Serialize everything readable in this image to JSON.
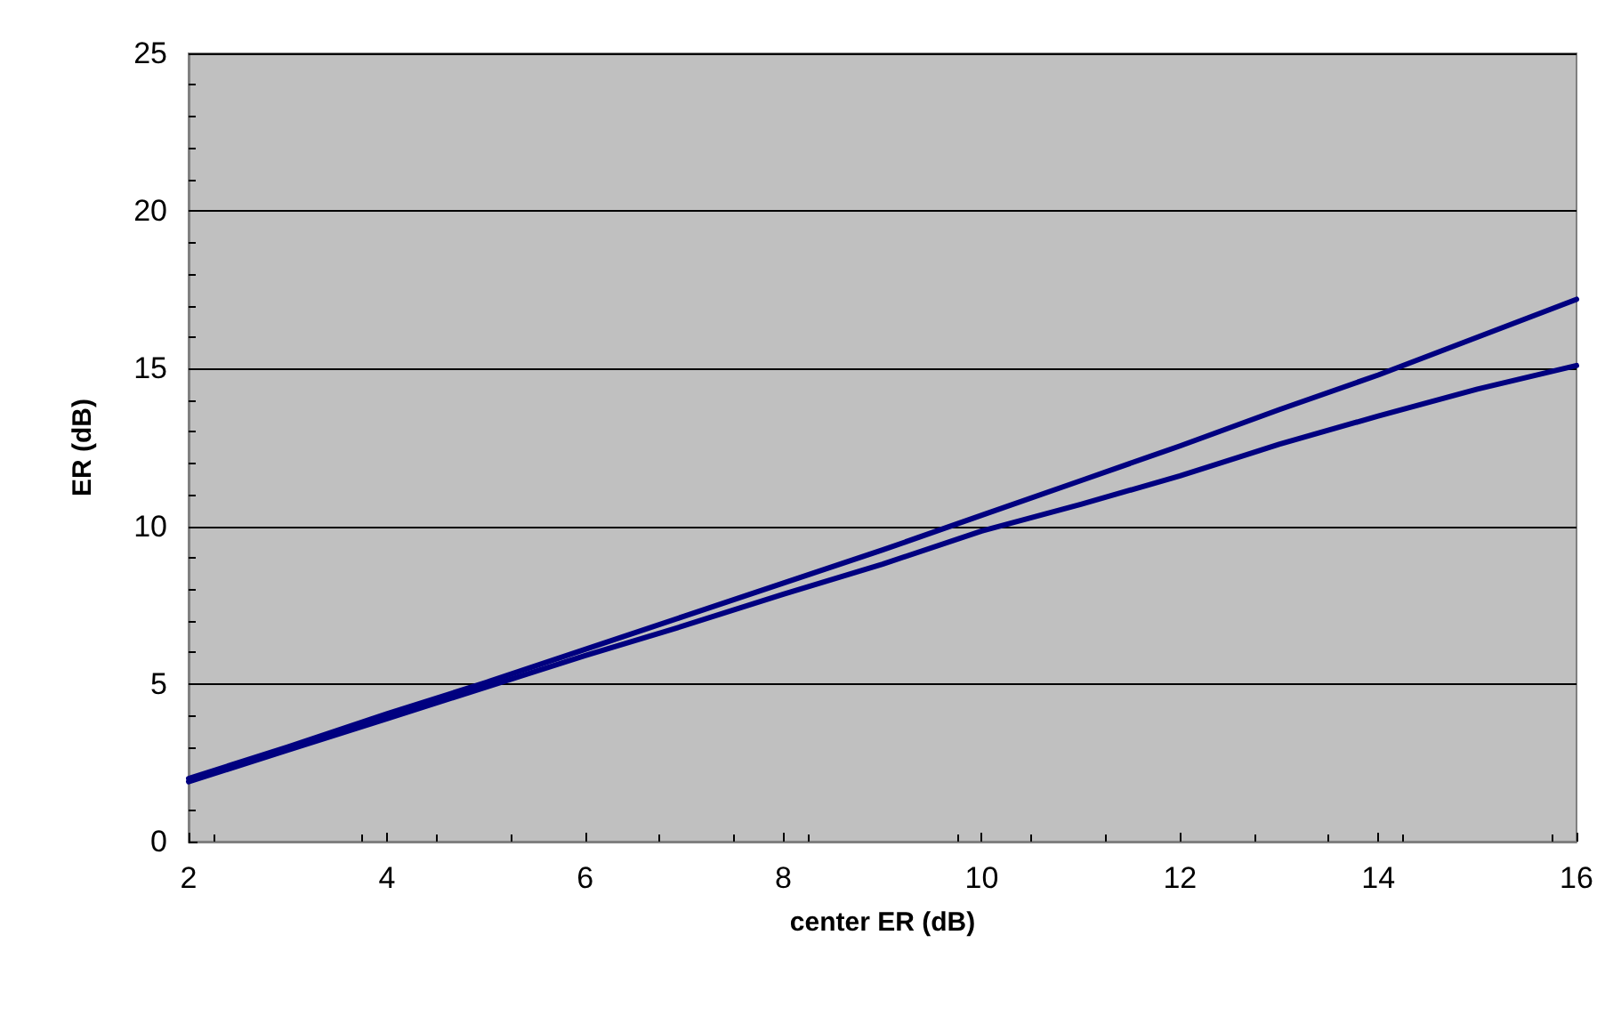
{
  "chart_data": {
    "type": "line",
    "xlabel": "center ER (dB)",
    "ylabel": "ER (dB)",
    "x": [
      2,
      3,
      4,
      5,
      6,
      7,
      8,
      9,
      10,
      11,
      12,
      13,
      14,
      15,
      16
    ],
    "series": [
      {
        "color": "#000080",
        "values": [
          2.0,
          3.0,
          4.05,
          5.05,
          6.1,
          7.15,
          8.2,
          9.25,
          10.35,
          11.45,
          12.55,
          13.7,
          14.8,
          16.0,
          17.2
        ]
      },
      {
        "color": "#000080",
        "values": [
          1.9,
          2.9,
          3.9,
          4.9,
          5.9,
          6.85,
          7.85,
          8.8,
          9.85,
          10.7,
          11.6,
          12.6,
          13.5,
          14.35,
          15.1
        ]
      }
    ],
    "xlim": [
      2,
      16
    ],
    "xticks": [
      2,
      4,
      6,
      8,
      10,
      12,
      14,
      16
    ],
    "ylim": [
      0,
      25
    ],
    "yticks": [
      0,
      5,
      10,
      15,
      20,
      25
    ],
    "grid": "y",
    "marker": "none",
    "line_style": "solid"
  }
}
